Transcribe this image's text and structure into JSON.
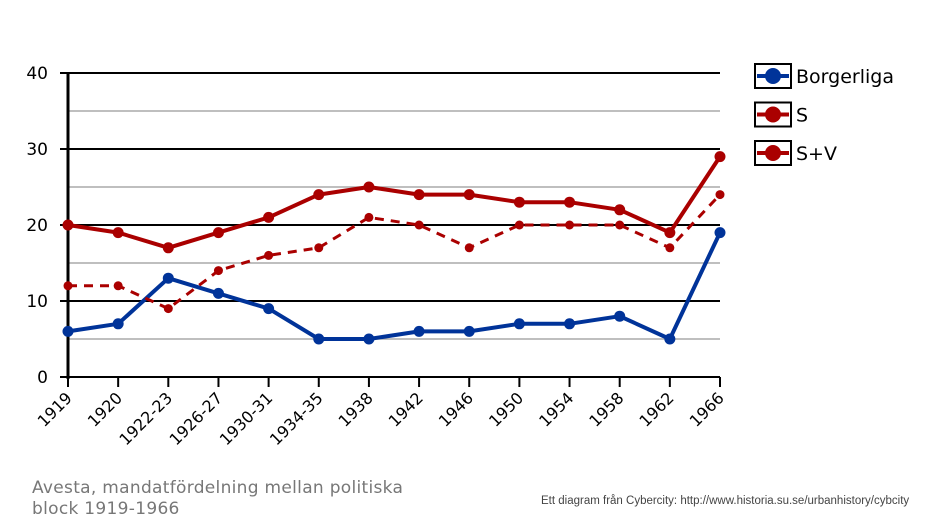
{
  "chart_data": {
    "type": "line",
    "title": "",
    "xlabel": "",
    "ylabel": "",
    "ylim": [
      0,
      40
    ],
    "yticks": [
      0,
      10,
      20,
      30,
      40
    ],
    "grid": true,
    "legend_position": "right",
    "categories": [
      "1919",
      "1920",
      "1922-23",
      "1926-27",
      "1930-31",
      "1934-35",
      "1938",
      "1942",
      "1946",
      "1950",
      "1954",
      "1958",
      "1962",
      "1966"
    ],
    "series": [
      {
        "name": "Borgerliga",
        "color": "#003399",
        "style": "solid",
        "values": [
          6,
          7,
          13,
          11,
          9,
          5,
          5,
          6,
          6,
          7,
          7,
          8,
          5,
          19
        ]
      },
      {
        "name": "S",
        "color": "#aa0000",
        "style": "dashed",
        "values": [
          12,
          12,
          9,
          14,
          16,
          17,
          21,
          20,
          17,
          20,
          20,
          20,
          17,
          24
        ]
      },
      {
        "name": "S+V",
        "color": "#aa0000",
        "style": "solid",
        "values": [
          20,
          19,
          17,
          19,
          21,
          24,
          25,
          24,
          24,
          23,
          23,
          22,
          19,
          29
        ]
      }
    ]
  },
  "caption": "Avesta, mandatfördelning  mellan politiska block 1919-1966",
  "credit": "Ett diagram från Cybercity: http://www.historia.su.se/urbanhistory/cybcity"
}
